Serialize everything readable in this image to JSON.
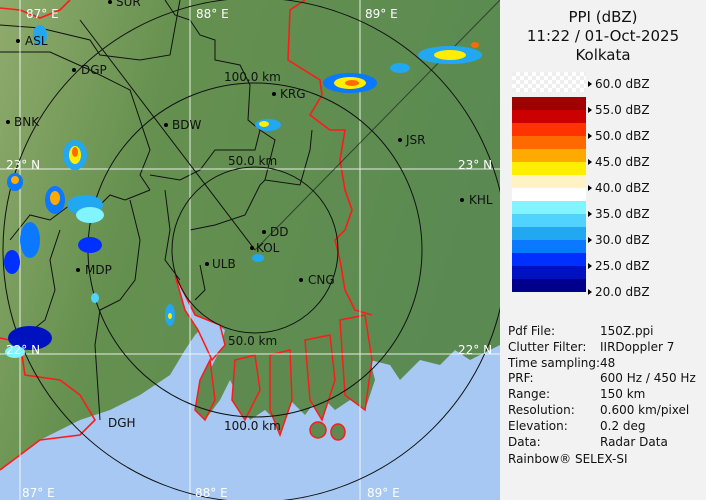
{
  "header": {
    "product": "PPI (dBZ)",
    "datetime": "11:22 / 01-Oct-2025",
    "site": "Kolkata"
  },
  "legend": {
    "ticks": [
      "60.0 dBZ",
      "55.0 dBZ",
      "50.0 dBZ",
      "45.0 dBZ",
      "40.0 dBZ",
      "35.0 dBZ",
      "30.0 dBZ",
      "25.0 dBZ",
      "20.0 dBZ"
    ],
    "colors": [
      "#a00000",
      "#cc0000",
      "#ff3300",
      "#ff6a00",
      "#ffaa00",
      "#ffee00",
      "#fff2c4",
      "#ffffff",
      "#80f4ff",
      "#50d4ff",
      "#22a8f0",
      "#0a78ff",
      "#0030ff",
      "#0012c0",
      "#00008c"
    ]
  },
  "info": [
    {
      "key": "Pdf File:",
      "value": "150Z.ppi"
    },
    {
      "key": "Clutter Filter:",
      "value": "IIRDoppler 7"
    },
    {
      "key": "Time sampling:",
      "value": "48"
    },
    {
      "key": "PRF:",
      "value": "600 Hz / 450 Hz"
    },
    {
      "key": "Range:",
      "value": "150 km"
    },
    {
      "key": "Resolution:",
      "value": "0.600 km/pixel"
    },
    {
      "key": "Elevation:",
      "value": "0.2 deg"
    },
    {
      "key": "Data:",
      "value": "Radar Data"
    }
  ],
  "footer": "Rainbow® SELEX-SI",
  "map": {
    "range_rings": [
      "50.0 km",
      "100.0 km",
      "150 km"
    ],
    "ring_labels": {
      "top_100": "100.0 km",
      "top_50": "50.0 km",
      "bottom_50": "50.0 km",
      "bottom_100": "100.0 km"
    },
    "grid": {
      "lon_top": [
        "87° E",
        "88° E",
        "89° E"
      ],
      "lon_bottom": [
        "87° E",
        "88° E",
        "89° E"
      ],
      "lat_left": [
        "23° N",
        "22° N"
      ],
      "lat_right": [
        "23° N",
        "22° N"
      ]
    },
    "cities": [
      "SUR",
      "ASL",
      "DGP",
      "BNK",
      "BDW",
      "KRG",
      "JSR",
      "KHL",
      "DD",
      "KOL",
      "ULB",
      "CNG",
      "MDP",
      "DGH"
    ],
    "colors": {
      "land": "#5f8a4f",
      "water": "#a6c8f2",
      "border_international": "#ff1a1a",
      "border_district": "#111111",
      "grid": "#ffffff"
    }
  }
}
